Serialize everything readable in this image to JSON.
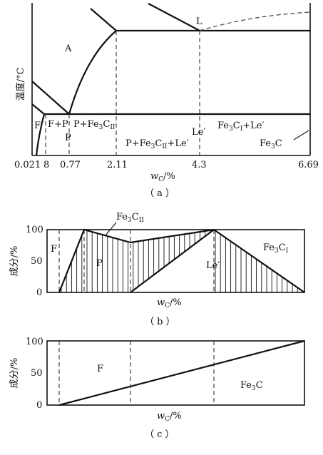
{
  "panel_a": {
    "y_axis_label": "温度/°C",
    "x_axis_label": "w",
    "x_axis_sub": "C",
    "x_axis_unit": "/%",
    "x_ticks": [
      "0.021",
      "8",
      "0.77",
      "2.11",
      "4.3",
      "6.69"
    ],
    "region_A": "A",
    "region_L": "L",
    "region_F": "F",
    "region_FP": "F+P",
    "region_P": "P",
    "region_P_Fe3CII": "P+Fe",
    "region_P_Fe3CII_sub3": "3",
    "region_P_Fe3CII_C": "C",
    "region_P_Fe3CII_sub": "II",
    "region_P_Fe3CII_Le": "P+Fe",
    "region_P_Fe3CII_Le_sub3": "3",
    "region_P_Fe3CII_Le_C": "C",
    "region_P_Fe3CII_Le_sub": "II",
    "region_P_Fe3CII_Le_tail": "+Le′",
    "region_Le": "Le′",
    "region_Fe3CI_Le": "Fe",
    "region_Fe3CI_Le_sub3": "3",
    "region_Fe3CI_Le_C": "C",
    "region_Fe3CI_Le_sub": "I",
    "region_Fe3CI_Le_tail": "+Le′",
    "region_Fe3C": "Fe",
    "region_Fe3C_sub3": "3",
    "region_Fe3C_C": "C",
    "caption": "（ a ）"
  },
  "panel_b": {
    "y_axis_label": "成分/%",
    "y_ticks": [
      "100",
      "50",
      "0"
    ],
    "x_axis_label": "w",
    "x_axis_sub": "C",
    "x_axis_unit": "/%",
    "label_F": "F",
    "label_P": "P",
    "label_Le": "Le′",
    "label_Fe3CII_main": "Fe",
    "label_Fe3CII_sub3": "3",
    "label_Fe3CII_C": "C",
    "label_Fe3CII_sub": "II",
    "label_Fe3CI_main": "Fe",
    "label_Fe3CI_sub3": "3",
    "label_Fe3CI_C": "C",
    "label_Fe3CI_sub": "I",
    "caption": "（ b ）"
  },
  "panel_c": {
    "y_axis_label": "成分/%",
    "y_ticks": [
      "100",
      "50",
      "0"
    ],
    "x_axis_label": "w",
    "x_axis_sub": "C",
    "x_axis_unit": "/%",
    "label_F": "F",
    "label_Fe3C_main": "Fe",
    "label_Fe3C_sub3": "3",
    "label_Fe3C_C": "C",
    "caption": "（ c ）"
  }
}
